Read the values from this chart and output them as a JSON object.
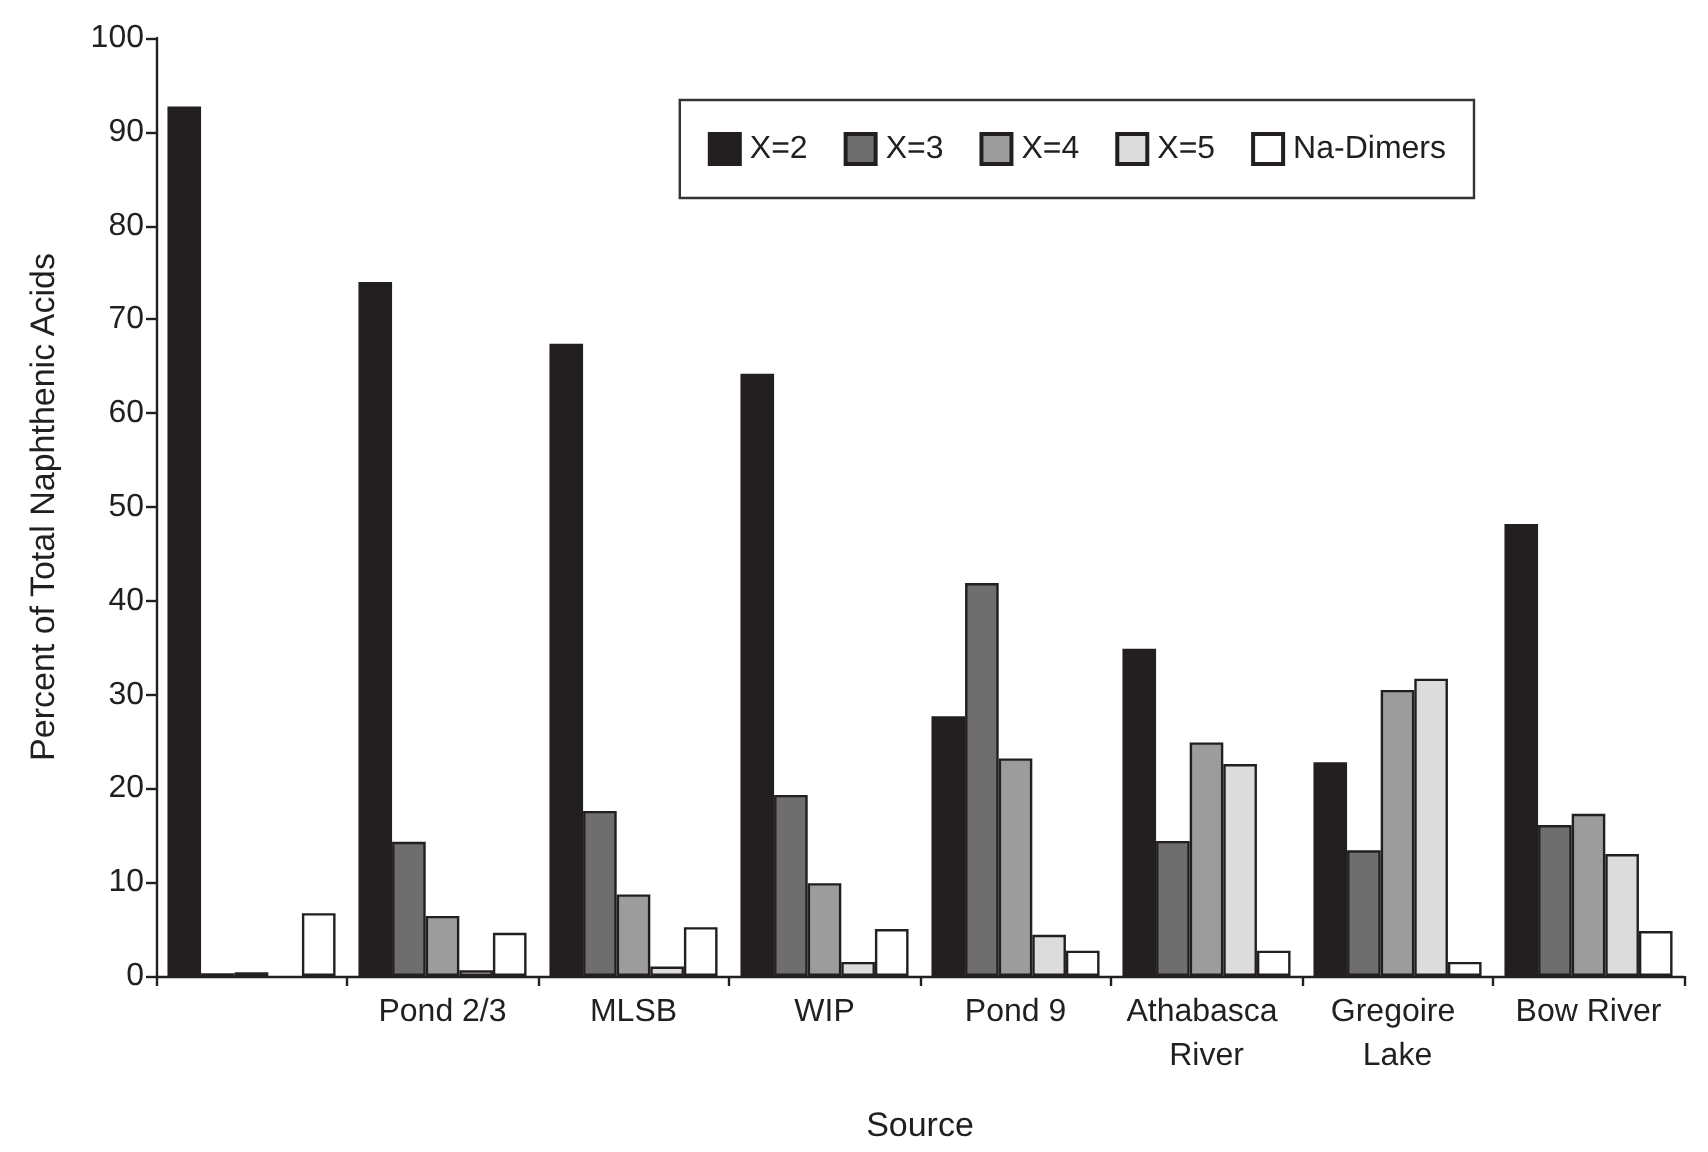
{
  "chart_data": {
    "type": "bar",
    "xlabel": "Source",
    "ylabel": "Percent of Total Naphthenic Acids",
    "categories": [
      null,
      "Pond 2/3",
      "MLSB",
      "WIP",
      "Pond 9",
      "Athabasca River",
      "Gregoire Lake",
      "Bow River"
    ],
    "series": [
      {
        "name": "X=2",
        "color": "#231f20",
        "values": [
          92.7,
          74.0,
          67.4,
          64.2,
          27.7,
          34.9,
          22.8,
          48.2
        ]
      },
      {
        "name": "X=3",
        "color": "#6e6e6e",
        "values": [
          0.3,
          14.3,
          17.6,
          19.3,
          41.9,
          14.4,
          13.4,
          16.1
        ]
      },
      {
        "name": "X=4",
        "color": "#9c9c9c",
        "values": [
          0.4,
          6.4,
          8.7,
          9.9,
          23.2,
          24.9,
          30.5,
          17.3
        ]
      },
      {
        "name": "X=5",
        "color": "#dcdcdc",
        "values": [
          null,
          0.6,
          1.0,
          1.5,
          4.4,
          22.6,
          31.7,
          13.0
        ]
      },
      {
        "name": "Na-Dimers",
        "color": "#ffffff",
        "values": [
          6.7,
          4.6,
          5.2,
          5.0,
          2.7,
          2.7,
          1.5,
          4.8
        ]
      }
    ],
    "ylim": [
      0,
      100
    ],
    "yticks": [
      0,
      10,
      20,
      30,
      40,
      50,
      60,
      70,
      80,
      90,
      100
    ],
    "grid": false,
    "legend": "top right"
  }
}
